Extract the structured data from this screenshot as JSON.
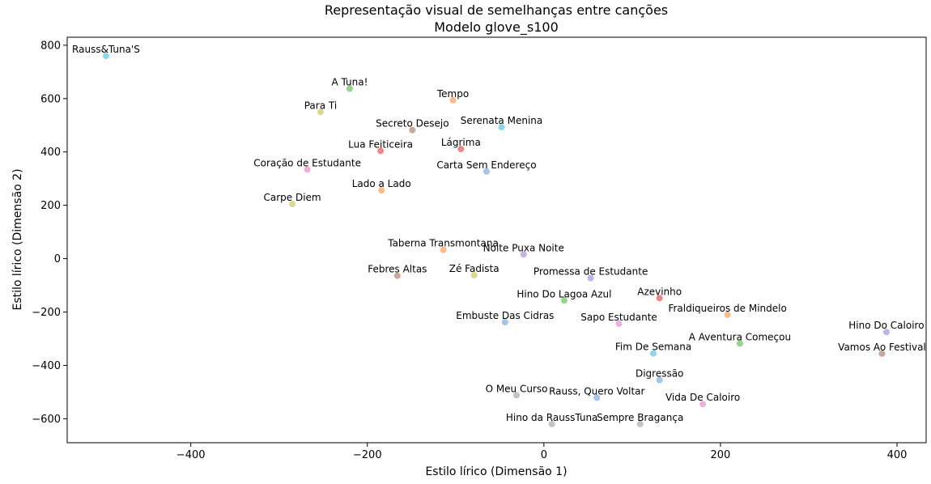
{
  "chart_data": {
    "type": "scatter",
    "title": "Representação visual de semelhanças entre canções",
    "subtitle": "Modelo glove_s100",
    "xlabel": "Estilo lírico (Dimensão 1)",
    "ylabel": "Estilo lírico (Dimensão 2)",
    "xlim": [
      -540,
      433
    ],
    "ylim": [
      -690,
      830
    ],
    "xticks": [
      -400,
      -200,
      0,
      200,
      400
    ],
    "yticks": [
      -600,
      -400,
      -200,
      0,
      200,
      400,
      600,
      800
    ],
    "grid": false,
    "legend": "none",
    "points": [
      {
        "label": "Rauss&Tuna'S",
        "x": -496,
        "y": 760,
        "color": "#8fd7e6"
      },
      {
        "label": "A Tuna!",
        "x": -220,
        "y": 637,
        "color": "#98d48f"
      },
      {
        "label": "Tempo",
        "x": -103,
        "y": 594,
        "color": "#ffbb88"
      },
      {
        "label": "Para Ti",
        "x": -253,
        "y": 550,
        "color": "#d8d890"
      },
      {
        "label": "Serenata Menina",
        "x": -48,
        "y": 493,
        "color": "#8fd7e6"
      },
      {
        "label": "Secreto Desejo",
        "x": -149,
        "y": 482,
        "color": "#c8a898"
      },
      {
        "label": "Lágrima",
        "x": -94,
        "y": 411,
        "color": "#ee8888"
      },
      {
        "label": "Lua Feiticeira",
        "x": -185,
        "y": 404,
        "color": "#ee8888"
      },
      {
        "label": "Coração de Estudante",
        "x": -268,
        "y": 334,
        "color": "#f0b0dd"
      },
      {
        "label": "Carta Sem Endereço",
        "x": -65,
        "y": 327,
        "color": "#a4c4e8"
      },
      {
        "label": "Lado a Lado",
        "x": -184,
        "y": 256,
        "color": "#ffbb88"
      },
      {
        "label": "Carpe Diem",
        "x": -285,
        "y": 205,
        "color": "#d8d890"
      },
      {
        "label": "Taberna Transmontana",
        "x": -114,
        "y": 33,
        "color": "#ffbb88"
      },
      {
        "label": "Noite Puxa Noite",
        "x": -23,
        "y": 16,
        "color": "#c4b4e4"
      },
      {
        "label": "Zé Fadista",
        "x": -79,
        "y": -62,
        "color": "#d8d890"
      },
      {
        "label": "Febres Altas",
        "x": -166,
        "y": -64,
        "color": "#c8a898"
      },
      {
        "label": "Promessa de Estudante",
        "x": 53,
        "y": -73,
        "color": "#c4b4e4"
      },
      {
        "label": "Azevinho",
        "x": 131,
        "y": -148,
        "color": "#ee8888"
      },
      {
        "label": "Hino Do Lagoa Azul",
        "x": 23,
        "y": -157,
        "color": "#98d48f"
      },
      {
        "label": "Fraldiqueiros de Mindelo",
        "x": 208,
        "y": -210,
        "color": "#ffbb88"
      },
      {
        "label": "Embuste Das Cidras",
        "x": -44,
        "y": -238,
        "color": "#a4c4e8"
      },
      {
        "label": "Sapo Estudante",
        "x": 85,
        "y": -244,
        "color": "#f0b0dd"
      },
      {
        "label": "Hino Do Caloiro",
        "x": 388,
        "y": -275,
        "color": "#c4b4e4"
      },
      {
        "label": "A Aventura Começou",
        "x": 222,
        "y": -318,
        "color": "#98d48f"
      },
      {
        "label": "Fim De Semana",
        "x": 124,
        "y": -355,
        "color": "#8fd7e6"
      },
      {
        "label": "Vamos Ao Festival",
        "x": 383,
        "y": -356,
        "color": "#c8a898"
      },
      {
        "label": "Digressão",
        "x": 131,
        "y": -455,
        "color": "#a4c4e8"
      },
      {
        "label": "O Meu Curso",
        "x": -31,
        "y": -512,
        "color": "#c4c4c4"
      },
      {
        "label": "Rauss, Quero Voltar",
        "x": 60,
        "y": -521,
        "color": "#a4c4e8"
      },
      {
        "label": "Vida De Caloiro",
        "x": 180,
        "y": -545,
        "color": "#f0b0dd"
      },
      {
        "label": "Hino da RaussTuna",
        "x": 9,
        "y": -620,
        "color": "#c4c4c4"
      },
      {
        "label": "Sempre Bragança",
        "x": 109,
        "y": -620,
        "color": "#c4c4c4"
      }
    ]
  }
}
